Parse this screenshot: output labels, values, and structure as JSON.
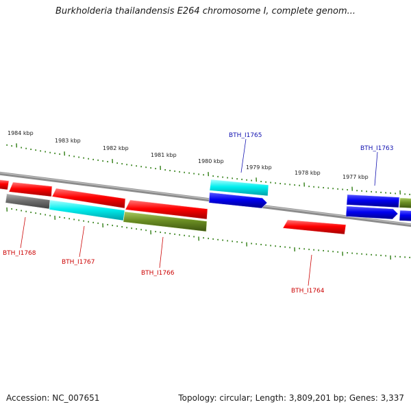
{
  "title": "Burkholderia thailandensis E264 chromosome I, complete genom...",
  "footer": {
    "accession": "Accession: NC_007651",
    "summary": "Topology: circular; Length: 3,809,201 bp; Genes: 3,337"
  },
  "colors": {
    "backbone": "#8c8c8c",
    "tick": "#2e7d12",
    "forward_label": "#1010b0",
    "reverse_label": "#cc0000",
    "red": "#ff0000",
    "blue": "#0000ff",
    "cyan": "#00e5ee",
    "olive": "#6b8e23",
    "gray": "#707070"
  },
  "ruler_labels": [
    "1984 kbp",
    "1983 kbp",
    "1982 kbp",
    "1981 kbp",
    "1980 kbp",
    "1979 kbp",
    "1978 kbp",
    "1977 kbp"
  ],
  "gene_labels": {
    "forward": [
      "BTH_I1765",
      "BTH_I1763"
    ],
    "reverse": [
      "BTH_I1768",
      "BTH_I1767",
      "BTH_I1766",
      "BTH_I1764"
    ]
  }
}
